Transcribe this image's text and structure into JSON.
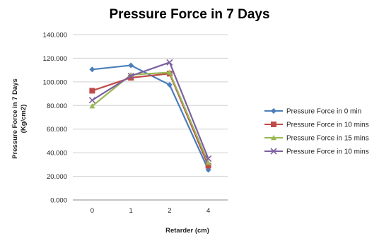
{
  "chart_data": {
    "type": "line",
    "title": "Pressure Force in 7 Days",
    "xlabel": "Retarder (cm)",
    "ylabel_lines": [
      "Pressure Force in 7 Days",
      "(Kg/cm2)"
    ],
    "categories": [
      "0",
      "1",
      "2",
      "4"
    ],
    "yticks": [
      "0.000",
      "20.000",
      "40.000",
      "60.000",
      "80.000",
      "100.000",
      "120.000",
      "140.000"
    ],
    "ylim": [
      0,
      140
    ],
    "grid": "horizontal",
    "legend_position": "right",
    "series": [
      {
        "name": "Pressure Force in 0 min",
        "values": [
          110.5,
          114,
          97.5,
          25.5
        ],
        "color": "#4a7ebb",
        "marker": "diamond"
      },
      {
        "name": "Pressure Force in 10 mins",
        "values": [
          92.5,
          103.5,
          107,
          29
        ],
        "color": "#be4b48",
        "marker": "square"
      },
      {
        "name": "Pressure Force in 15 mins",
        "values": [
          79.5,
          106,
          108,
          31.5
        ],
        "color": "#98b954",
        "marker": "triangle"
      },
      {
        "name": "Pressure Force in 10 mins",
        "values": [
          84.5,
          105,
          116.5,
          35
        ],
        "color": "#7d60a0",
        "marker": "x"
      }
    ]
  }
}
